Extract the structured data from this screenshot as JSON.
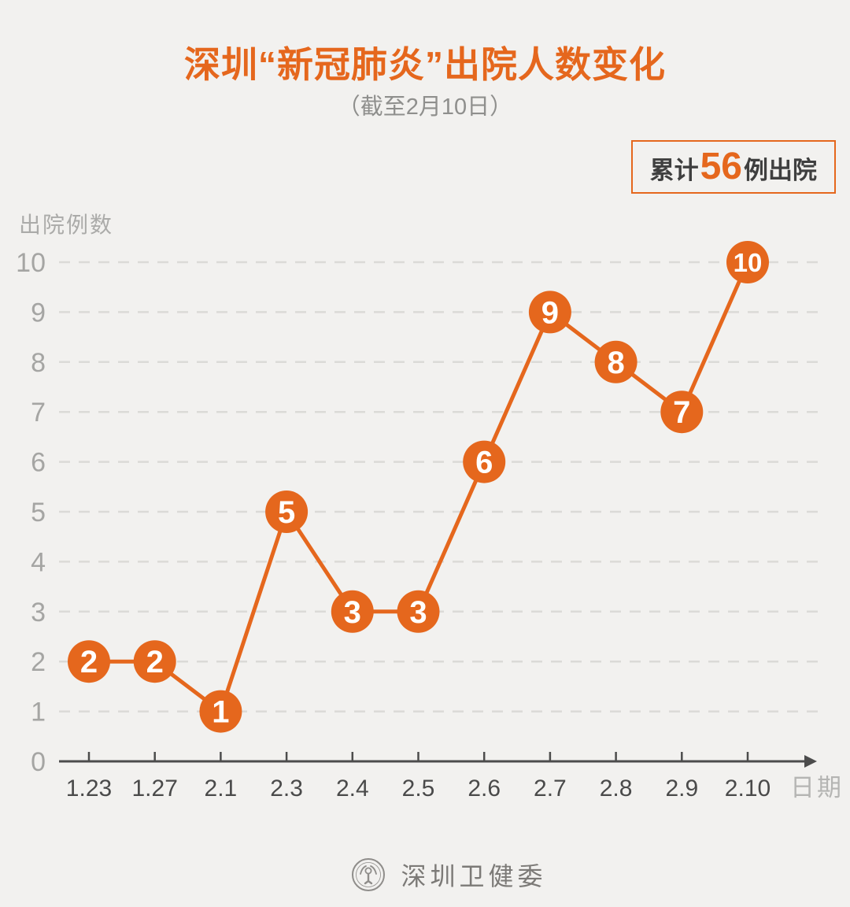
{
  "header": {
    "title": "深圳“新冠肺炎”出院人数变化",
    "subtitle": "（截至2月10日）"
  },
  "badge": {
    "prefix": "累计",
    "number": "56",
    "suffix": "例出院"
  },
  "chart_data": {
    "type": "line",
    "categories": [
      "1.23",
      "1.27",
      "2.1",
      "2.3",
      "2.4",
      "2.5",
      "2.6",
      "2.7",
      "2.8",
      "2.9",
      "2.10"
    ],
    "values": [
      2,
      2,
      1,
      5,
      3,
      3,
      6,
      9,
      8,
      7,
      10
    ],
    "title": "深圳“新冠肺炎”出院人数变化（截至2月10日）",
    "xlabel": "日期",
    "ylabel": "出院例数",
    "ylim": [
      0,
      10
    ],
    "yticks": [
      0,
      1,
      2,
      3,
      4,
      5,
      6,
      7,
      8,
      9,
      10
    ],
    "grid": "horizontal-dashed",
    "legend": "none",
    "point_labels": "values shown in white inside orange circular markers"
  },
  "colors": {
    "accent": "#E5671D",
    "marker_value_text": "#FFFFFF",
    "background": "#F2F1EF",
    "grid": "#DBDAD7",
    "axis": "#4C4C4C",
    "x_tick": "#4A4A4A",
    "y_tick": "#A5A5A3",
    "x_axis_title": "#B5B5B3",
    "y_axis_title": "#ABABA9",
    "subtitle": "#8F8F8D",
    "badge_text": "#3F3F3F",
    "footer_text": "#7C7A77"
  },
  "footer": {
    "logo": "shenzhen-health-commission-seal",
    "text": "深圳卫健委"
  }
}
